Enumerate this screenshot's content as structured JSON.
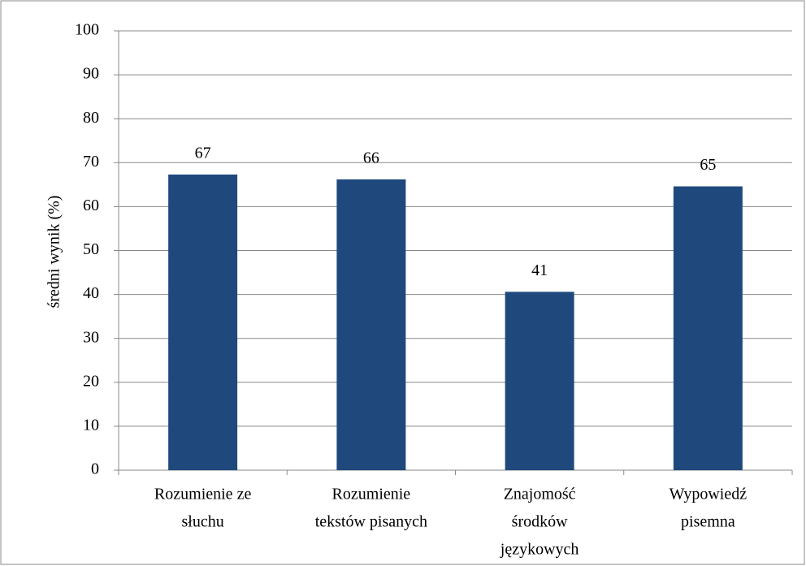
{
  "chart_data": {
    "type": "bar",
    "y_label": "średni wynik  (%)",
    "categories": [
      [
        "Rozumienie ze",
        "słuchu"
      ],
      [
        "Rozumienie",
        "tekstów pisanych"
      ],
      [
        "Znajomość",
        "środków",
        "językowych"
      ],
      [
        "Wypowiedź",
        "pisemna"
      ]
    ],
    "values": [
      67.3,
      66.2,
      40.6,
      64.6
    ],
    "value_labels": [
      "67",
      "66",
      "41",
      "65"
    ],
    "color": "#1f497d",
    "ylim": [
      0,
      100
    ],
    "yticks": [
      0,
      10,
      20,
      30,
      40,
      50,
      60,
      70,
      80,
      90,
      100
    ],
    "grid": true
  }
}
